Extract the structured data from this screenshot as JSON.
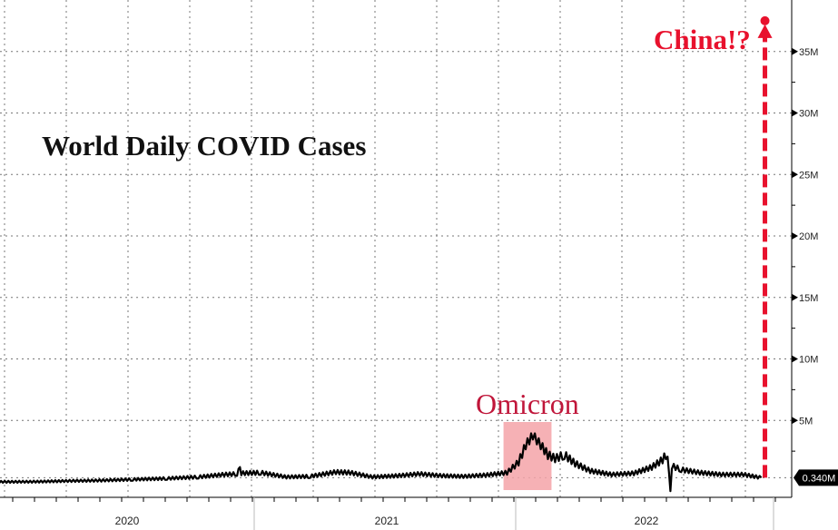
{
  "chart_data": {
    "type": "line",
    "title": "World Daily COVID Cases",
    "annotations": [
      {
        "text": "Omicron",
        "color": "#f5a3a8",
        "highlight_range": [
          "2021-12-15",
          "2022-02-20"
        ]
      },
      {
        "text": "China!?",
        "color": "#e8112d",
        "date": "2022-12-20",
        "value": 37.5
      }
    ],
    "last_value_label": "0.340M",
    "y_unit": "M",
    "ylim": [
      0,
      38.5
    ],
    "y_ticks": [
      {
        "value": 5,
        "label": "5M"
      },
      {
        "value": 10,
        "label": "10M"
      },
      {
        "value": 15,
        "label": "15M"
      },
      {
        "value": 20,
        "label": "20M"
      },
      {
        "value": 25,
        "label": "25M"
      },
      {
        "value": 30,
        "label": "30M"
      },
      {
        "value": 35,
        "label": "35M"
      }
    ],
    "x_ticks": [
      "2020",
      "2021",
      "2022"
    ],
    "grid": true,
    "series": [
      {
        "color": "#000000",
        "points": [
          [
            "2020-01-05",
            0.0
          ],
          [
            "2020-03-01",
            0.02
          ],
          [
            "2020-04-15",
            0.08
          ],
          [
            "2020-06-01",
            0.12
          ],
          [
            "2020-07-15",
            0.2
          ],
          [
            "2020-09-01",
            0.28
          ],
          [
            "2020-10-15",
            0.4
          ],
          [
            "2020-11-20",
            0.6
          ],
          [
            "2020-12-08",
            0.65
          ],
          [
            "2020-12-10",
            1.3
          ],
          [
            "2020-12-14",
            0.7
          ],
          [
            "2021-01-10",
            0.75
          ],
          [
            "2021-02-15",
            0.4
          ],
          [
            "2021-03-20",
            0.45
          ],
          [
            "2021-04-25",
            0.8
          ],
          [
            "2021-05-15",
            0.75
          ],
          [
            "2021-06-15",
            0.4
          ],
          [
            "2021-07-20",
            0.5
          ],
          [
            "2021-08-20",
            0.65
          ],
          [
            "2021-09-20",
            0.5
          ],
          [
            "2021-10-20",
            0.45
          ],
          [
            "2021-11-20",
            0.55
          ],
          [
            "2021-12-20",
            0.75
          ],
          [
            "2022-01-05",
            1.6
          ],
          [
            "2022-01-15",
            3.0
          ],
          [
            "2022-01-25",
            3.8
          ],
          [
            "2022-02-05",
            3.0
          ],
          [
            "2022-02-15",
            2.2
          ],
          [
            "2022-02-25",
            1.9
          ],
          [
            "2022-03-10",
            2.2
          ],
          [
            "2022-03-25",
            1.5
          ],
          [
            "2022-04-15",
            0.9
          ],
          [
            "2022-05-15",
            0.6
          ],
          [
            "2022-06-15",
            0.7
          ],
          [
            "2022-07-10",
            1.2
          ],
          [
            "2022-07-25",
            1.8
          ],
          [
            "2022-08-01",
            2.4
          ],
          [
            "2022-08-03",
            0.9
          ],
          [
            "2022-08-05",
            -0.6
          ],
          [
            "2022-08-07",
            1.3
          ],
          [
            "2022-08-20",
            1.0
          ],
          [
            "2022-09-15",
            0.75
          ],
          [
            "2022-10-15",
            0.6
          ],
          [
            "2022-11-15",
            0.6
          ],
          [
            "2022-12-10",
            0.34
          ]
        ]
      }
    ]
  }
}
